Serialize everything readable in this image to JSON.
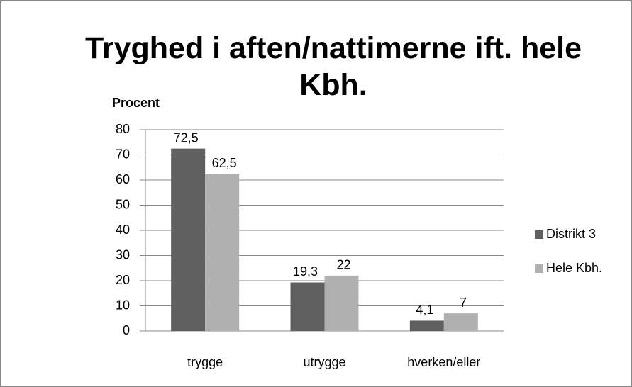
{
  "chart_data": {
    "type": "bar",
    "title": "Tryghed i aften/nattimerne ift. hele Kbh.",
    "y_label": "Procent",
    "categories": [
      "trygge",
      "utrygge",
      "hverken/eller"
    ],
    "series": [
      {
        "name": "Distrikt 3",
        "color": "#606060",
        "values": [
          72.5,
          19.3,
          4.1
        ],
        "value_labels": [
          "72,5",
          "19,3",
          "4,1"
        ]
      },
      {
        "name": "Hele Kbh.",
        "color": "#b0b0b0",
        "values": [
          62.5,
          22,
          7
        ],
        "value_labels": [
          "62,5",
          "22",
          "7"
        ]
      }
    ],
    "ylim": [
      0,
      80
    ],
    "yticks": [
      0,
      10,
      20,
      30,
      40,
      50,
      60,
      70,
      80
    ],
    "grid": true,
    "legend": "right"
  }
}
